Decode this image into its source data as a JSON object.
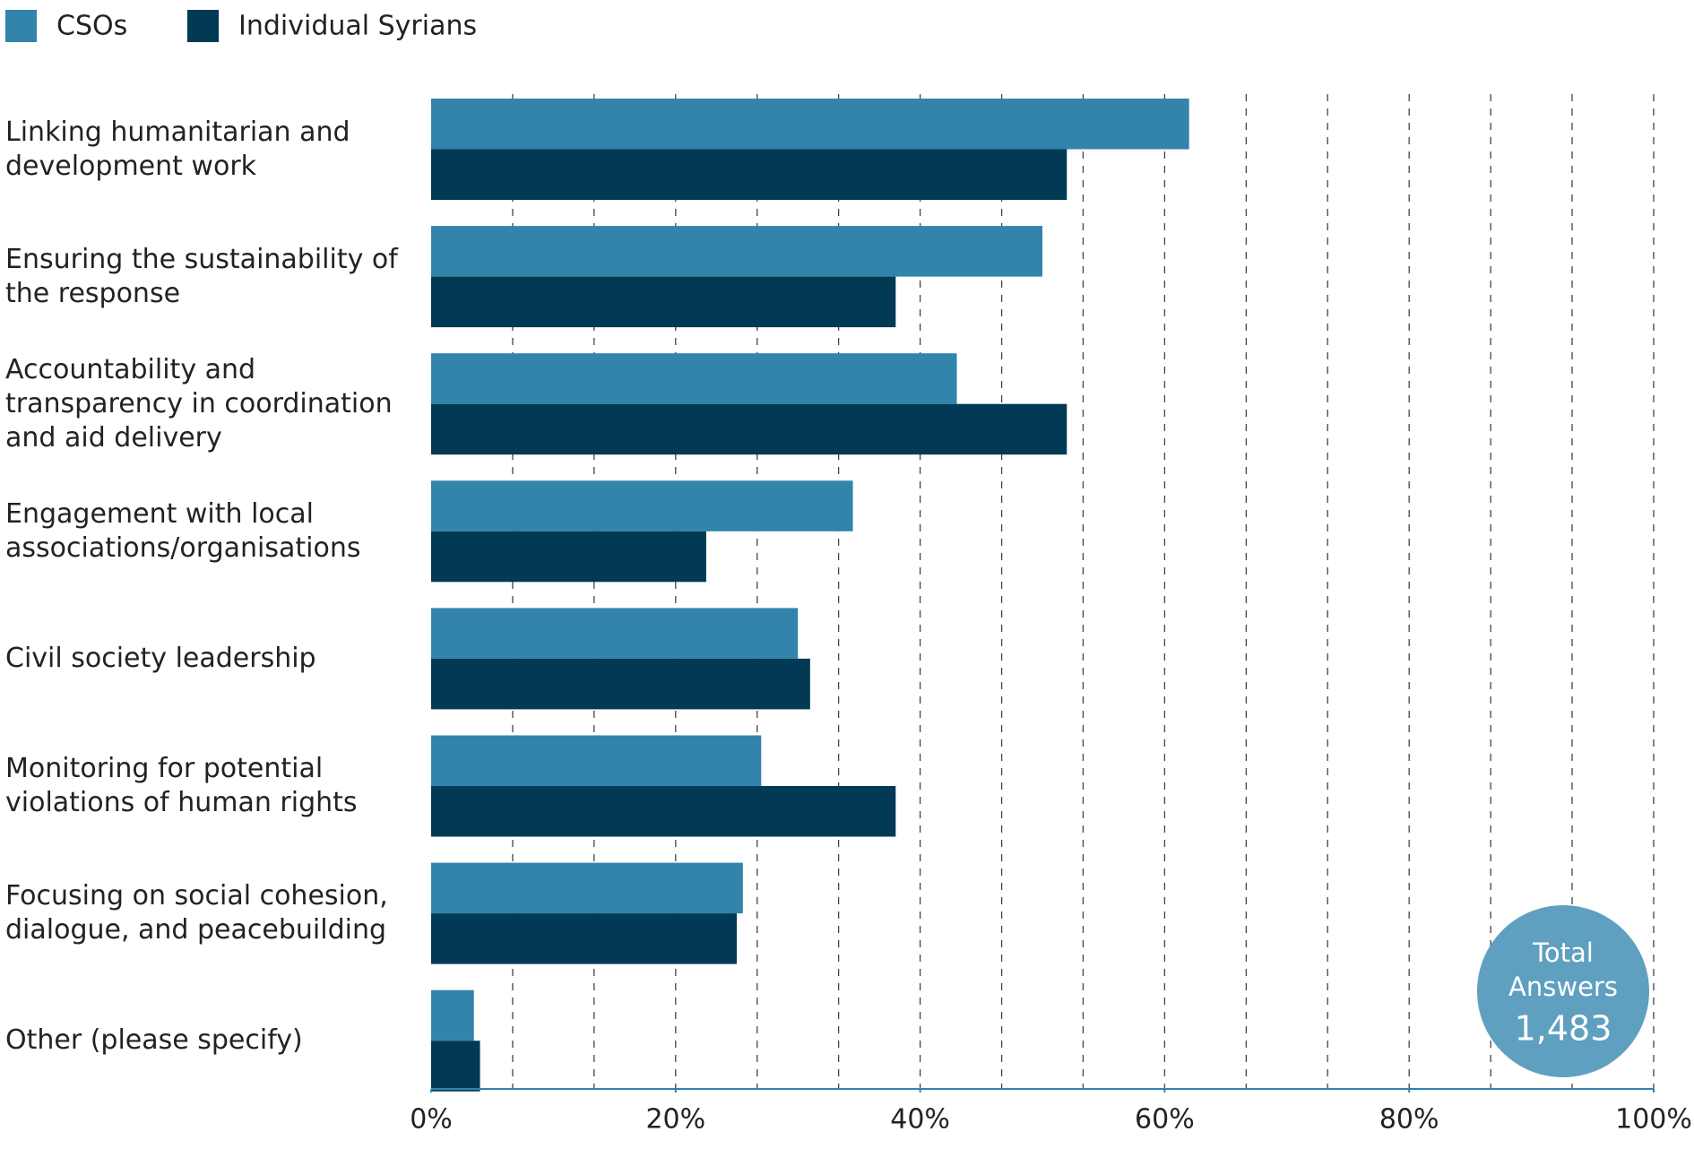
{
  "chart_data": {
    "type": "hbar",
    "categories": [
      "Linking humanitarian and development work",
      "Ensuring the sustainability of the response",
      "Accountability and transparency in coordination and aid delivery",
      "Engagement with local associations/organisations",
      "Civil society leadership",
      "Monitoring for potential violations of human rights",
      "Focusing on social cohesion, dialogue, and peacebuilding",
      "Other (please specify)"
    ],
    "series": [
      {
        "name": "CSOs",
        "color": "#3284ab",
        "values": [
          62,
          50,
          43,
          34.5,
          30,
          27,
          25.5,
          3.5
        ]
      },
      {
        "name": "Individual Syrians",
        "color": "#023a55",
        "values": [
          52,
          38,
          52,
          22.5,
          31,
          38,
          25,
          4
        ]
      }
    ],
    "xlim": [
      0,
      100
    ],
    "xticks": [
      {
        "value": 0,
        "label": "0%"
      },
      {
        "value": 20,
        "label": "20%"
      },
      {
        "value": 40,
        "label": "40%"
      },
      {
        "value": 60,
        "label": "60%"
      },
      {
        "value": 80,
        "label": "80%"
      },
      {
        "value": 100,
        "label": "100%"
      }
    ],
    "xgrid": [
      6.67,
      13.33,
      20,
      26.67,
      33.33,
      40,
      46.67,
      53.33,
      60,
      66.67,
      73.33,
      80,
      86.67,
      93.33,
      100
    ],
    "legend": "top-left",
    "annotation": {
      "title": "Total Answers",
      "value_label": "1,483"
    }
  }
}
